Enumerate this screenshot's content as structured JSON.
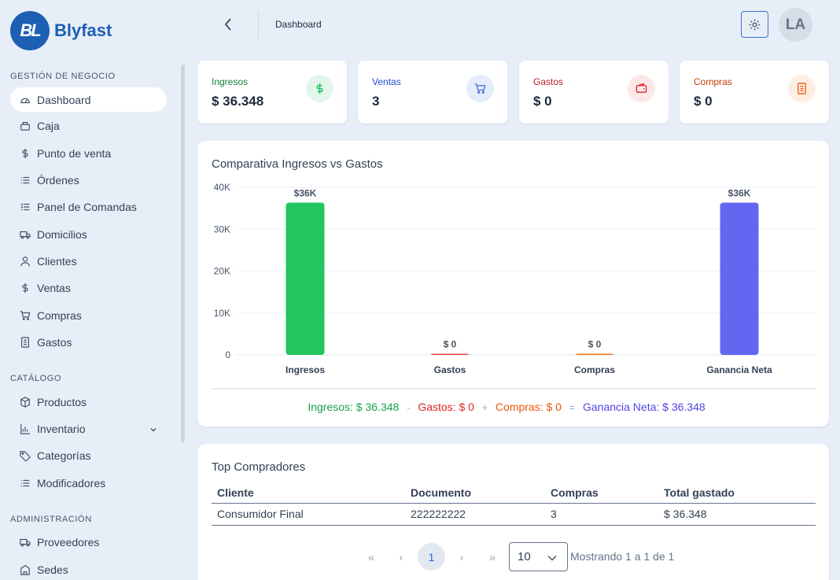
{
  "brand": {
    "logo_mark": "BL",
    "name": "Blyfast"
  },
  "header": {
    "breadcrumb": "Dashboard",
    "avatar_initials": "LA",
    "settings_icon": "gear-icon",
    "back_icon": "chevron-left-icon"
  },
  "sidebar": {
    "sections": [
      {
        "title": "GESTIÓN DE NEGOCIO"
      },
      {
        "title": "CATÁLOGO"
      },
      {
        "title": "ADMINISTRACIÓN"
      }
    ],
    "items": [
      {
        "label": "Dashboard",
        "icon": "dashboard-icon",
        "active": true
      },
      {
        "label": "Caja",
        "icon": "cash-register-icon"
      },
      {
        "label": "Punto de venta",
        "icon": "dollar-icon"
      },
      {
        "label": "Órdenes",
        "icon": "list-icon"
      },
      {
        "label": "Panel de Comandas",
        "icon": "checklist-icon"
      },
      {
        "label": "Domicilios",
        "icon": "truck-icon"
      },
      {
        "label": "Clientes",
        "icon": "user-icon"
      },
      {
        "label": "Ventas",
        "icon": "dollar-icon"
      },
      {
        "label": "Compras",
        "icon": "cart-icon"
      },
      {
        "label": "Gastos",
        "icon": "receipt-icon"
      },
      {
        "label": "Productos",
        "icon": "box-icon"
      },
      {
        "label": "Inventario",
        "icon": "bar-chart-icon",
        "expandable": true
      },
      {
        "label": "Categorías",
        "icon": "tag-icon"
      },
      {
        "label": "Modificadores",
        "icon": "list-icon"
      },
      {
        "label": "Proveedores",
        "icon": "truck-icon"
      },
      {
        "label": "Sedes",
        "icon": "building-icon"
      }
    ]
  },
  "stats": [
    {
      "label": "Ingresos",
      "value": "$ 36.348",
      "color": "#15803d",
      "icon": "dollar-icon",
      "icon_bg": "#e3f6ea",
      "icon_color": "#22c55e"
    },
    {
      "label": "Ventas",
      "value": "3",
      "color": "#1d4ed8",
      "icon": "cart-icon",
      "icon_bg": "#e5ecfb",
      "icon_color": "#3b6fd1"
    },
    {
      "label": "Gastos",
      "value": "$ 0",
      "color": "#b91c1c",
      "icon": "wallet-icon",
      "icon_bg": "#fde8e8",
      "icon_color": "#dc2626"
    },
    {
      "label": "Compras",
      "value": "$ 0",
      "color": "#c2410c",
      "icon": "receipt-icon",
      "icon_bg": "#fdeee3",
      "icon_color": "#ea580c"
    }
  ],
  "chart_data": {
    "type": "bar",
    "title": "Comparativa Ingresos vs Gastos",
    "categories": [
      "Ingresos",
      "Gastos",
      "Compras",
      "Ganancia Neta"
    ],
    "values": [
      36348,
      0,
      0,
      36348
    ],
    "data_labels": [
      "$36K",
      "$ 0",
      "$ 0",
      "$36K"
    ],
    "colors": [
      "#22c55e",
      "#ef4444",
      "#f97316",
      "#6366f1"
    ],
    "ylim": [
      0,
      40000
    ],
    "yticks": [
      0,
      10000,
      20000,
      30000,
      40000
    ],
    "ytick_labels": [
      "0",
      "10K",
      "20K",
      "30K",
      "40K"
    ],
    "grid": true,
    "summary": [
      {
        "text": "Ingresos: $ 36.348",
        "color": "#16a34a"
      },
      {
        "text": "-",
        "color": "#94a3b8"
      },
      {
        "text": "Gastos: $ 0",
        "color": "#dc2626"
      },
      {
        "text": "+",
        "color": "#94a3b8"
      },
      {
        "text": "Compras: $ 0",
        "color": "#ea580c"
      },
      {
        "text": "=",
        "color": "#94a3b8"
      },
      {
        "text": "Ganancia Neta: $ 36.348",
        "color": "#4f46e5"
      }
    ]
  },
  "top_buyers": {
    "title": "Top Compradores",
    "columns": [
      "Cliente",
      "Documento",
      "Compras",
      "Total gastado"
    ],
    "rows": [
      [
        "Consumidor Final",
        "222222222",
        "3",
        "$ 36.348"
      ]
    ]
  },
  "pagination": {
    "first": "«",
    "prev": "‹",
    "current": "1",
    "next": "›",
    "last": "»",
    "page_size": "10",
    "info": "Mostrando 1 a 1 de 1"
  }
}
